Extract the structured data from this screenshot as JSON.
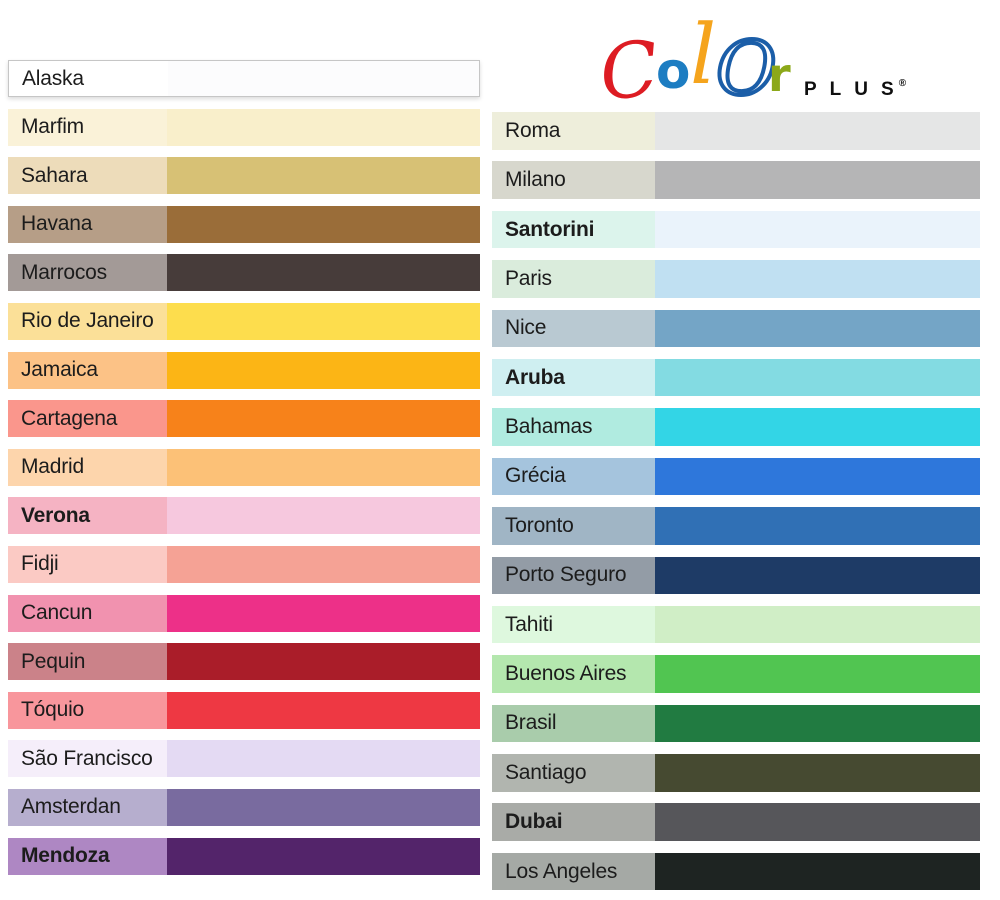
{
  "logo": {
    "word_letters": [
      {
        "char": "C",
        "color": "#dd1c23"
      },
      {
        "char": "o",
        "color": "#1d7dc2"
      },
      {
        "char": "l",
        "color": "#f5a41d"
      },
      {
        "char": "O",
        "color": "#1b5ea8"
      },
      {
        "char": "r",
        "color": "#8ca819"
      }
    ],
    "suffix": "PLUS",
    "registered": "®"
  },
  "chart_data": {
    "type": "table",
    "title": "Color Plus",
    "description": "Paper color swatch chart: each row shows a color name on a tinted label cell and its full-strength swatch bar",
    "columns": [
      {
        "side": "left",
        "rows": [
          {
            "name": "Alaska",
            "label_bg": "#ffffff",
            "swatch": "#fcfcfd",
            "bold": false,
            "bordered": true
          },
          {
            "name": "Marfim",
            "label_bg": "#faf2d8",
            "swatch": "#f9efcb",
            "bold": false,
            "bordered": false
          },
          {
            "name": "Sahara",
            "label_bg": "#eddcba",
            "swatch": "#d7c175",
            "bold": false,
            "bordered": false
          },
          {
            "name": "Havana",
            "label_bg": "#b69e87",
            "swatch": "#9a6d39",
            "bold": false,
            "bordered": false
          },
          {
            "name": "Marrocos",
            "label_bg": "#a39a97",
            "swatch": "#473c3a",
            "bold": false,
            "bordered": false
          },
          {
            "name": "Rio de Janeiro",
            "label_bg": "#fbe098",
            "swatch": "#fddd4d",
            "bold": false,
            "bordered": false
          },
          {
            "name": "Jamaica",
            "label_bg": "#fcc286",
            "swatch": "#fcb515",
            "bold": false,
            "bordered": false
          },
          {
            "name": "Cartagena",
            "label_bg": "#fa968c",
            "swatch": "#f7821a",
            "bold": false,
            "bordered": false
          },
          {
            "name": "Madrid",
            "label_bg": "#fdd5ac",
            "swatch": "#fcc177",
            "bold": false,
            "bordered": false
          },
          {
            "name": "Verona",
            "label_bg": "#f5b3c3",
            "swatch": "#f6c8de",
            "bold": true,
            "bordered": false
          },
          {
            "name": "Fidji",
            "label_bg": "#fbcac4",
            "swatch": "#f5a295",
            "bold": false,
            "bordered": false
          },
          {
            "name": "Cancun",
            "label_bg": "#f192af",
            "swatch": "#ed3088",
            "bold": false,
            "bordered": false
          },
          {
            "name": "Pequin",
            "label_bg": "#cb8289",
            "swatch": "#aa1d29",
            "bold": false,
            "bordered": false
          },
          {
            "name": "Tóquio",
            "label_bg": "#f8969c",
            "swatch": "#ee3843",
            "bold": false,
            "bordered": false
          },
          {
            "name": "São Francisco",
            "label_bg": "#f5eefa",
            "swatch": "#e4daf3",
            "bold": false,
            "bordered": false
          },
          {
            "name": "Amsterdan",
            "label_bg": "#b6aece",
            "swatch": "#796b9f",
            "bold": false,
            "bordered": false
          },
          {
            "name": "Mendoza",
            "label_bg": "#ae87c3",
            "swatch": "#53246a",
            "bold": true,
            "bordered": false
          }
        ]
      },
      {
        "side": "right",
        "rows": [
          {
            "name": "Roma",
            "label_bg": "#eeeedb",
            "swatch": "#e5e6e6",
            "bold": false,
            "bordered": false
          },
          {
            "name": "Milano",
            "label_bg": "#d7d7cd",
            "swatch": "#b5b5b6",
            "bold": false,
            "bordered": false
          },
          {
            "name": "Santorini",
            "label_bg": "#dcf4ec",
            "swatch": "#eaf3fb",
            "bold": true,
            "bordered": false
          },
          {
            "name": "Paris",
            "label_bg": "#daecdc",
            "swatch": "#c0e0f2",
            "bold": false,
            "bordered": false
          },
          {
            "name": "Nice",
            "label_bg": "#b9c9d2",
            "swatch": "#74a5c6",
            "bold": false,
            "bordered": false
          },
          {
            "name": "Aruba",
            "label_bg": "#cfeff1",
            "swatch": "#83dbe2",
            "bold": true,
            "bordered": false
          },
          {
            "name": "Bahamas",
            "label_bg": "#b0ebe0",
            "swatch": "#33d5e6",
            "bold": false,
            "bordered": false
          },
          {
            "name": "Grécia",
            "label_bg": "#a5c4dd",
            "swatch": "#2e77db",
            "bold": false,
            "bordered": false
          },
          {
            "name": "Toronto",
            "label_bg": "#a0b5c5",
            "swatch": "#3070b5",
            "bold": false,
            "bordered": false
          },
          {
            "name": "Porto Seguro",
            "label_bg": "#939ca6",
            "swatch": "#1e3b66",
            "bold": false,
            "bordered": false
          },
          {
            "name": "Tahiti",
            "label_bg": "#def8de",
            "swatch": "#d0eec6",
            "bold": false,
            "bordered": false
          },
          {
            "name": "Buenos Aires",
            "label_bg": "#b4e7ae",
            "swatch": "#51c551",
            "bold": false,
            "bordered": false
          },
          {
            "name": "Brasil",
            "label_bg": "#a9ccab",
            "swatch": "#217b41",
            "bold": false,
            "bordered": false
          },
          {
            "name": "Santiago",
            "label_bg": "#b1b5af",
            "swatch": "#464a31",
            "bold": false,
            "bordered": false
          },
          {
            "name": "Dubai",
            "label_bg": "#a9aba7",
            "swatch": "#56565a",
            "bold": true,
            "bordered": false
          },
          {
            "name": "Los Angeles",
            "label_bg": "#a5a9a5",
            "swatch": "#1e2422",
            "bold": false,
            "bordered": false
          }
        ]
      }
    ]
  }
}
